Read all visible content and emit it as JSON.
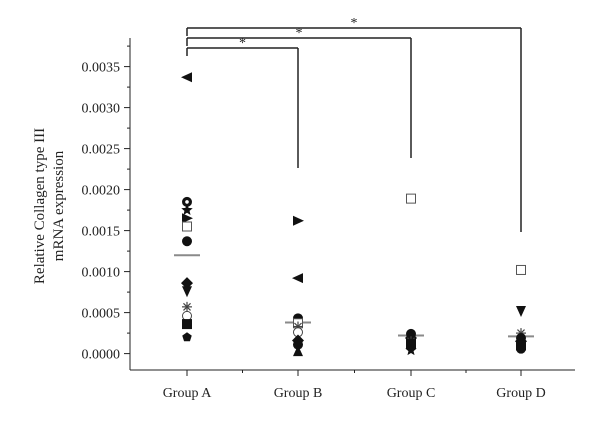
{
  "chart_data": {
    "type": "scatter",
    "title": "",
    "xlabel": "",
    "ylabel": [
      "Relative Collagen type III",
      "mRNA expression"
    ],
    "ylim": [
      -0.0002,
      0.0038
    ],
    "ytick_values": [
      0.0,
      0.0005,
      0.001,
      0.0015,
      0.002,
      0.0025,
      0.003,
      0.0035
    ],
    "ytick_labels": [
      "0.0000",
      "0.0005",
      "0.0010",
      "0.0015",
      "0.0020",
      "0.0025",
      "0.0030",
      "0.0035"
    ],
    "categories": [
      "Group A",
      "Group B",
      "Group C",
      "Group D"
    ],
    "means": [
      0.0012,
      0.00038,
      0.00022,
      0.00021
    ],
    "points": [
      {
        "group": 0,
        "y": 0.00337,
        "marker": "triangle-left"
      },
      {
        "group": 0,
        "y": 0.00185,
        "marker": "circle-dot"
      },
      {
        "group": 0,
        "y": 0.00175,
        "marker": "star"
      },
      {
        "group": 0,
        "y": 0.00165,
        "marker": "triangle-right"
      },
      {
        "group": 0,
        "y": 0.00155,
        "marker": "square-open"
      },
      {
        "group": 0,
        "y": 0.00137,
        "marker": "circle"
      },
      {
        "group": 0,
        "y": 0.00086,
        "marker": "diamond"
      },
      {
        "group": 0,
        "y": 0.00076,
        "marker": "triangle-down"
      },
      {
        "group": 0,
        "y": 0.00057,
        "marker": "asterisk"
      },
      {
        "group": 0,
        "y": 0.00046,
        "marker": "circle-open"
      },
      {
        "group": 0,
        "y": 0.00036,
        "marker": "square"
      },
      {
        "group": 0,
        "y": 0.0002,
        "marker": "pentagon"
      },
      {
        "group": 1,
        "y": 0.00162,
        "marker": "triangle-right"
      },
      {
        "group": 1,
        "y": 0.00092,
        "marker": "triangle-left"
      },
      {
        "group": 1,
        "y": 0.00043,
        "marker": "circle"
      },
      {
        "group": 1,
        "y": 0.00037,
        "marker": "square-open"
      },
      {
        "group": 1,
        "y": 0.00033,
        "marker": "asterisk"
      },
      {
        "group": 1,
        "y": 0.00026,
        "marker": "circle-open"
      },
      {
        "group": 1,
        "y": 0.00016,
        "marker": "diamond"
      },
      {
        "group": 1,
        "y": 0.00011,
        "marker": "circle"
      },
      {
        "group": 1,
        "y": 3e-05,
        "marker": "triangle-up"
      },
      {
        "group": 2,
        "y": 0.00189,
        "marker": "square-open"
      },
      {
        "group": 2,
        "y": 0.00024,
        "marker": "circle"
      },
      {
        "group": 2,
        "y": 0.00019,
        "marker": "diamond"
      },
      {
        "group": 2,
        "y": 0.00015,
        "marker": "asterisk"
      },
      {
        "group": 2,
        "y": 0.00012,
        "marker": "square"
      },
      {
        "group": 2,
        "y": 8e-05,
        "marker": "triangle-down"
      },
      {
        "group": 2,
        "y": 4e-05,
        "marker": "star"
      },
      {
        "group": 3,
        "y": 0.00102,
        "marker": "square-open"
      },
      {
        "group": 3,
        "y": 0.00052,
        "marker": "triangle-down"
      },
      {
        "group": 3,
        "y": 0.00025,
        "marker": "asterisk"
      },
      {
        "group": 3,
        "y": 0.00019,
        "marker": "circle"
      },
      {
        "group": 3,
        "y": 0.00015,
        "marker": "diamond"
      },
      {
        "group": 3,
        "y": 0.0001,
        "marker": "square"
      },
      {
        "group": 3,
        "y": 6e-05,
        "marker": "circle"
      }
    ],
    "significance": [
      {
        "from": 0,
        "to": 1,
        "label": "*"
      },
      {
        "from": 0,
        "to": 2,
        "label": "*"
      },
      {
        "from": 0,
        "to": 3,
        "label": "*"
      }
    ],
    "grid": false,
    "legend": "none"
  }
}
